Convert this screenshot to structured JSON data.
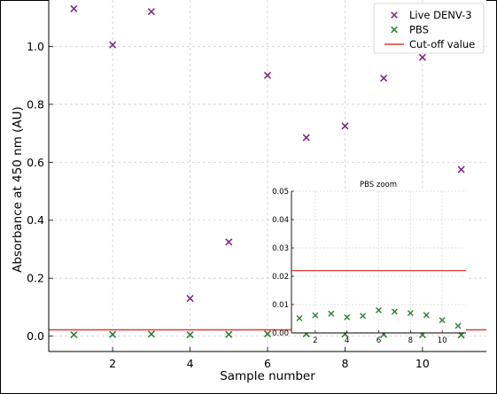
{
  "chart_data": [
    {
      "type": "scatter",
      "title": "",
      "xlabel": "Sample number",
      "ylabel": "Absorbance at 450 nm (AU)",
      "xlim": [
        0.35,
        11.65
      ],
      "ylim": [
        -0.053,
        1.16
      ],
      "xticks": [
        "2",
        "4",
        "6",
        "8",
        "10"
      ],
      "yticks": [
        "0.0",
        "0.2",
        "0.4",
        "0.6",
        "0.8",
        "1.0"
      ],
      "grid": true,
      "legend_position": "top-right",
      "series": [
        {
          "name": "Live DENV-3",
          "marker": "x",
          "color": "#7B2A82",
          "points": [
            [
              1,
              1.13
            ],
            [
              2,
              1.005
            ],
            [
              3,
              1.12
            ],
            [
              4,
              0.13
            ],
            [
              5,
              0.325
            ],
            [
              6,
              0.9
            ],
            [
              7,
              0.685
            ],
            [
              8,
              0.725
            ],
            [
              9,
              0.89
            ],
            [
              10,
              0.962
            ],
            [
              11,
              0.575
            ]
          ]
        },
        {
          "name": "PBS",
          "marker": "x",
          "color": "#2E7D32",
          "points": [
            [
              1,
              0.005
            ],
            [
              2,
              0.006
            ],
            [
              3,
              0.007
            ],
            [
              4,
              0.005
            ],
            [
              5,
              0.006
            ],
            [
              6,
              0.008
            ],
            [
              7,
              0.008
            ],
            [
              8,
              0.007
            ],
            [
              9,
              0.006
            ],
            [
              10,
              0.005
            ],
            [
              11,
              0.004
            ]
          ]
        }
      ],
      "lines": [
        {
          "name": "Cut-off value",
          "orientation": "horizontal",
          "y": 0.022,
          "color": "#E53935"
        }
      ]
    },
    {
      "type": "scatter",
      "title": "PBS zoom",
      "xlabel": "",
      "ylabel": "",
      "xlim": [
        0.5,
        11.5
      ],
      "ylim": [
        0,
        0.05
      ],
      "xticks": [
        "2",
        "4",
        "6",
        "8",
        "10"
      ],
      "yticks": [
        "0.00",
        "0.01",
        "0.02",
        "0.03",
        "0.04",
        "0.05"
      ],
      "grid": true,
      "series": [
        {
          "name": "PBS",
          "marker": "x",
          "color": "#2E7D32",
          "points": [
            [
              1,
              0.0052
            ],
            [
              2,
              0.0062
            ],
            [
              3,
              0.0068
            ],
            [
              4,
              0.0055
            ],
            [
              5,
              0.006
            ],
            [
              6,
              0.008
            ],
            [
              7,
              0.0075
            ],
            [
              8,
              0.007
            ],
            [
              9,
              0.0063
            ],
            [
              10,
              0.0045
            ],
            [
              11,
              0.0025
            ]
          ]
        }
      ],
      "lines": [
        {
          "name": "Cut-off value",
          "orientation": "horizontal",
          "y": 0.022,
          "color": "#E53935"
        }
      ]
    }
  ]
}
